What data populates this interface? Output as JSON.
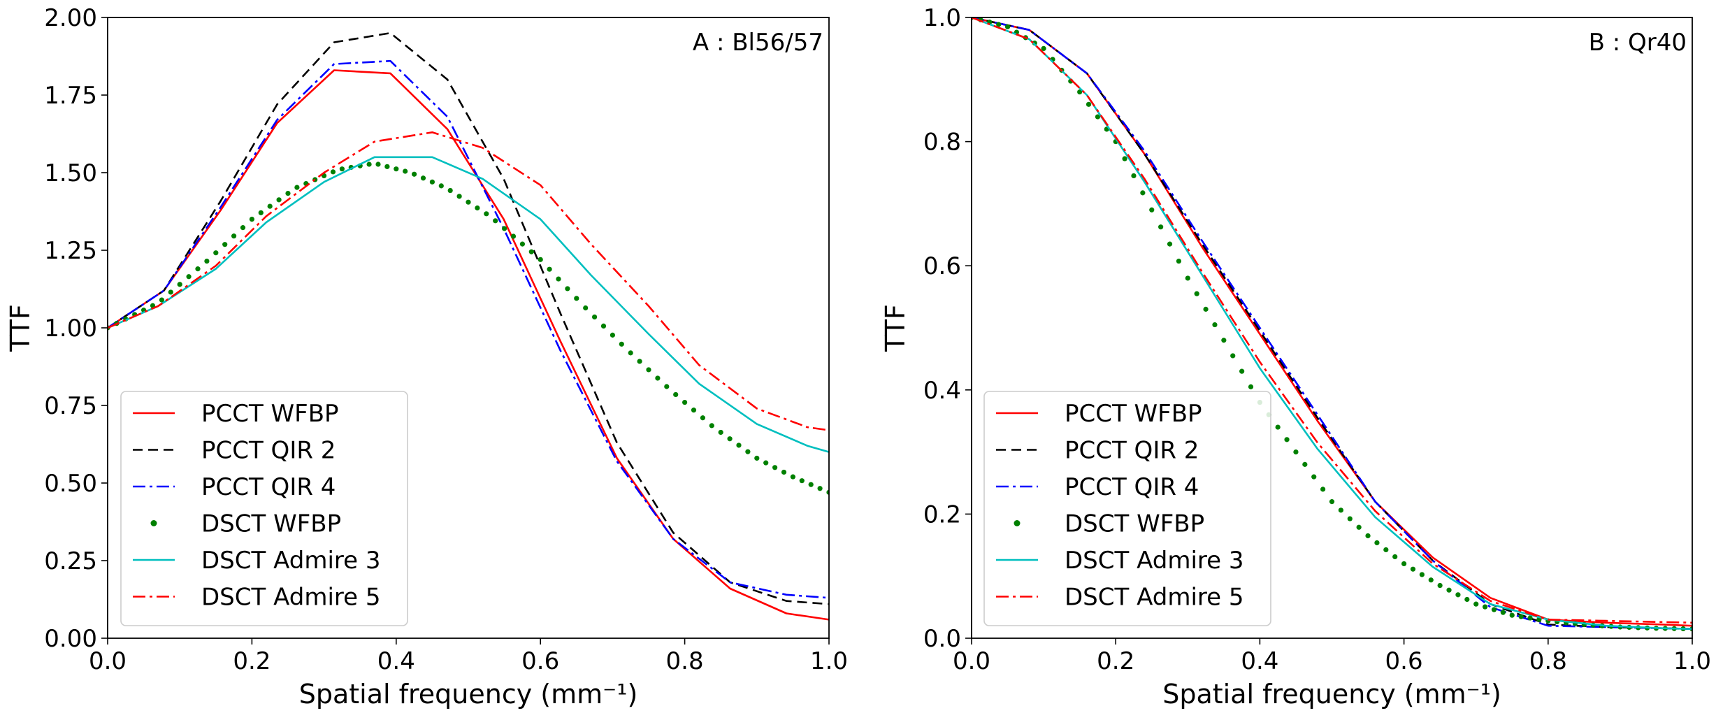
{
  "chart_data": [
    {
      "type": "line",
      "panel": "A",
      "annotation": "A : Bl56/57",
      "xlabel": "Spatial frequency (mm⁻¹)",
      "ylabel": "TTF",
      "xlim": [
        0.0,
        1.0
      ],
      "ylim": [
        0.0,
        2.0
      ],
      "xticks": [
        "0.0",
        "0.2",
        "0.4",
        "0.6",
        "0.8",
        "1.0"
      ],
      "yticks": [
        "0.00",
        "0.25",
        "0.50",
        "0.75",
        "1.00",
        "1.25",
        "1.50",
        "1.75",
        "2.00"
      ],
      "legend_position": "lower-left",
      "series": [
        {
          "name": "PCCT WFBP",
          "color": "#ff0000",
          "style": "solid",
          "x": [
            0,
            0.078,
            0.157,
            0.235,
            0.314,
            0.392,
            0.471,
            0.549,
            0.627,
            0.706,
            0.784,
            0.863,
            0.941,
            1.0
          ],
          "y": [
            1.0,
            1.12,
            1.38,
            1.66,
            1.83,
            1.82,
            1.64,
            1.35,
            0.96,
            0.58,
            0.32,
            0.16,
            0.08,
            0.06
          ]
        },
        {
          "name": "PCCT QIR 2",
          "color": "#000000",
          "style": "dashed",
          "x": [
            0,
            0.078,
            0.157,
            0.235,
            0.314,
            0.392,
            0.471,
            0.549,
            0.627,
            0.706,
            0.784,
            0.863,
            0.941,
            1.0
          ],
          "y": [
            1.0,
            1.12,
            1.41,
            1.72,
            1.92,
            1.95,
            1.8,
            1.48,
            1.05,
            0.63,
            0.34,
            0.18,
            0.12,
            0.11
          ]
        },
        {
          "name": "PCCT QIR 4",
          "color": "#0000ff",
          "style": "dashdot",
          "x": [
            0,
            0.078,
            0.157,
            0.235,
            0.314,
            0.392,
            0.471,
            0.549,
            0.627,
            0.706,
            0.784,
            0.863,
            0.941,
            1.0
          ],
          "y": [
            1.0,
            1.12,
            1.39,
            1.67,
            1.85,
            1.86,
            1.68,
            1.32,
            0.93,
            0.57,
            0.32,
            0.18,
            0.14,
            0.13
          ]
        },
        {
          "name": "DSCT WFBP",
          "color": "#008000",
          "style": "dots",
          "x": [
            0,
            0.07,
            0.14,
            0.2,
            0.26,
            0.32,
            0.37,
            0.42,
            0.47,
            0.53,
            0.6,
            0.66,
            0.72,
            0.78,
            0.84,
            0.9,
            0.95,
            1.0
          ],
          "y": [
            1.0,
            1.08,
            1.22,
            1.35,
            1.45,
            1.51,
            1.53,
            1.5,
            1.45,
            1.36,
            1.22,
            1.07,
            0.93,
            0.8,
            0.68,
            0.58,
            0.52,
            0.47
          ]
        },
        {
          "name": "DSCT Admire 3",
          "color": "#00bfbf",
          "style": "solid",
          "x": [
            0,
            0.07,
            0.15,
            0.22,
            0.3,
            0.37,
            0.45,
            0.52,
            0.6,
            0.67,
            0.75,
            0.82,
            0.9,
            0.97,
            1.0
          ],
          "y": [
            1.0,
            1.07,
            1.19,
            1.34,
            1.47,
            1.55,
            1.55,
            1.48,
            1.35,
            1.17,
            0.98,
            0.82,
            0.69,
            0.62,
            0.6
          ]
        },
        {
          "name": "DSCT Admire 5",
          "color": "#ff0000",
          "style": "dashdot",
          "x": [
            0,
            0.07,
            0.15,
            0.22,
            0.3,
            0.37,
            0.45,
            0.52,
            0.6,
            0.67,
            0.75,
            0.82,
            0.9,
            0.97,
            1.0
          ],
          "y": [
            1.0,
            1.07,
            1.2,
            1.36,
            1.5,
            1.6,
            1.63,
            1.58,
            1.46,
            1.27,
            1.07,
            0.88,
            0.74,
            0.68,
            0.67
          ]
        }
      ]
    },
    {
      "type": "line",
      "panel": "B",
      "annotation": "B : Qr40",
      "xlabel": "Spatial frequency (mm⁻¹)",
      "ylabel": "TTF",
      "xlim": [
        0.0,
        1.0
      ],
      "ylim": [
        0.0,
        1.0
      ],
      "xticks": [
        "0.0",
        "0.2",
        "0.4",
        "0.6",
        "0.8",
        "1.0"
      ],
      "yticks": [
        "0.0",
        "0.2",
        "0.4",
        "0.6",
        "0.8",
        "1.0"
      ],
      "legend_position": "lower-left",
      "series": [
        {
          "name": "PCCT WFBP",
          "color": "#ff0000",
          "style": "solid",
          "x": [
            0,
            0.08,
            0.16,
            0.24,
            0.32,
            0.4,
            0.48,
            0.56,
            0.64,
            0.72,
            0.8,
            0.88,
            0.96,
            1.0
          ],
          "y": [
            1.0,
            0.98,
            0.91,
            0.78,
            0.63,
            0.49,
            0.35,
            0.22,
            0.13,
            0.065,
            0.03,
            0.025,
            0.022,
            0.02
          ]
        },
        {
          "name": "PCCT QIR 2",
          "color": "#000000",
          "style": "dashed",
          "x": [
            0,
            0.08,
            0.16,
            0.24,
            0.32,
            0.4,
            0.48,
            0.56,
            0.64,
            0.72,
            0.8,
            0.88,
            0.96,
            1.0
          ],
          "y": [
            1.0,
            0.98,
            0.91,
            0.78,
            0.635,
            0.495,
            0.355,
            0.22,
            0.125,
            0.055,
            0.022,
            0.018,
            0.016,
            0.015
          ]
        },
        {
          "name": "PCCT QIR 4",
          "color": "#0000ff",
          "style": "dashdot",
          "x": [
            0,
            0.08,
            0.16,
            0.24,
            0.32,
            0.4,
            0.48,
            0.56,
            0.64,
            0.72,
            0.8,
            0.88,
            0.96,
            1.0
          ],
          "y": [
            1.0,
            0.98,
            0.91,
            0.785,
            0.64,
            0.5,
            0.36,
            0.22,
            0.125,
            0.05,
            0.02,
            0.018,
            0.016,
            0.015
          ]
        },
        {
          "name": "DSCT WFBP",
          "color": "#008000",
          "style": "dots",
          "x": [
            0,
            0.05,
            0.1,
            0.15,
            0.2,
            0.25,
            0.3,
            0.35,
            0.4,
            0.45,
            0.5,
            0.55,
            0.6,
            0.65,
            0.7,
            0.75,
            0.8,
            0.85,
            0.9,
            0.95,
            1.0
          ],
          "y": [
            1.0,
            0.985,
            0.95,
            0.88,
            0.8,
            0.69,
            0.58,
            0.48,
            0.38,
            0.3,
            0.22,
            0.165,
            0.12,
            0.085,
            0.055,
            0.037,
            0.028,
            0.022,
            0.018,
            0.016,
            0.015
          ]
        },
        {
          "name": "DSCT Admire 3",
          "color": "#00bfbf",
          "style": "solid",
          "x": [
            0,
            0.08,
            0.16,
            0.24,
            0.32,
            0.4,
            0.48,
            0.56,
            0.64,
            0.72,
            0.8,
            0.88,
            0.96,
            1.0
          ],
          "y": [
            1.0,
            0.965,
            0.875,
            0.735,
            0.585,
            0.435,
            0.305,
            0.195,
            0.115,
            0.055,
            0.03,
            0.02,
            0.016,
            0.015
          ]
        },
        {
          "name": "DSCT Admire 5",
          "color": "#ff0000",
          "style": "dashdot",
          "x": [
            0,
            0.08,
            0.16,
            0.24,
            0.32,
            0.4,
            0.48,
            0.56,
            0.64,
            0.72,
            0.8,
            0.88,
            0.96,
            1.0
          ],
          "y": [
            1.0,
            0.965,
            0.875,
            0.74,
            0.59,
            0.445,
            0.315,
            0.205,
            0.12,
            0.06,
            0.03,
            0.028,
            0.026,
            0.025
          ]
        }
      ]
    }
  ]
}
